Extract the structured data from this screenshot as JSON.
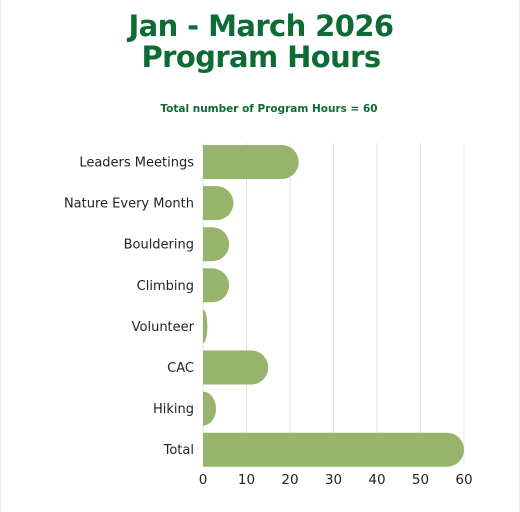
{
  "chart_data": {
    "type": "bar",
    "orientation": "horizontal",
    "title_lines": [
      "Jan - March 2026",
      "Program Hours"
    ],
    "subtitle": "Total number of Program Hours = 60",
    "categories": [
      "Leaders Meetings",
      "Nature Every Month",
      "Bouldering",
      "Climbing",
      "Volunteer",
      "CAC",
      "Hiking",
      "Total"
    ],
    "values": [
      22,
      7,
      6,
      6,
      1,
      15,
      3,
      60
    ],
    "xlim": [
      0,
      60
    ],
    "xticks": [
      0,
      10,
      20,
      30,
      40,
      50,
      60
    ],
    "xlabel": "",
    "ylabel": "",
    "grid": "vertical",
    "legend": "none",
    "bar_color": "#97b46d",
    "title_color": "#0e6b35"
  }
}
